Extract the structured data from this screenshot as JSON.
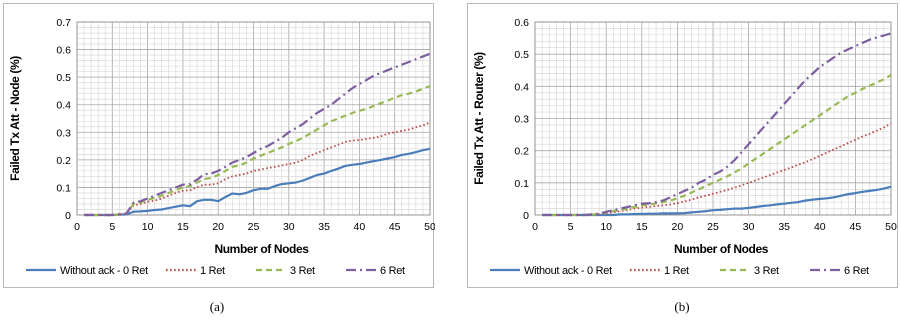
{
  "chart_data": [
    {
      "type": "line",
      "panel_caption": "(a)",
      "xlabel": "Number of Nodes",
      "ylabel": "Failed Tx Att - Node (%)",
      "xlim": [
        0,
        50
      ],
      "ylim": [
        0,
        0.7
      ],
      "xticks": [
        "0",
        "5",
        "10",
        "15",
        "20",
        "25",
        "30",
        "35",
        "40",
        "45",
        "50"
      ],
      "yticks": [
        "0",
        "0.1",
        "0.2",
        "0.3",
        "0.4",
        "0.5",
        "0.6",
        "0.7"
      ],
      "grid": true,
      "legend_position": "bottom",
      "series": [
        {
          "name": "Without ack - 0 Ret",
          "color": "#4a7ebb",
          "style": "solid",
          "x": [
            1,
            3,
            5,
            7,
            8,
            9,
            10,
            11,
            12,
            13,
            14,
            15,
            16,
            17,
            18,
            19,
            20,
            21,
            22,
            23,
            24,
            25,
            26,
            27,
            28,
            29,
            30,
            31,
            32,
            33,
            34,
            35,
            36,
            37,
            38,
            39,
            40,
            41,
            42,
            43,
            44,
            45,
            46,
            47,
            48,
            49,
            50
          ],
          "y": [
            0,
            0,
            0,
            0.002,
            0.012,
            0.013,
            0.015,
            0.018,
            0.02,
            0.025,
            0.03,
            0.035,
            0.032,
            0.05,
            0.055,
            0.055,
            0.05,
            0.065,
            0.078,
            0.075,
            0.08,
            0.09,
            0.095,
            0.095,
            0.105,
            0.112,
            0.115,
            0.118,
            0.125,
            0.135,
            0.145,
            0.15,
            0.16,
            0.168,
            0.178,
            0.182,
            0.185,
            0.19,
            0.195,
            0.2,
            0.205,
            0.21,
            0.218,
            0.222,
            0.228,
            0.235,
            0.24
          ]
        },
        {
          "name": "1 Ret",
          "color": "#be4b48",
          "style": "dot",
          "x": [
            1,
            3,
            5,
            7,
            8,
            9,
            10,
            11,
            12,
            13,
            14,
            15,
            16,
            17,
            18,
            19,
            20,
            21,
            22,
            23,
            24,
            25,
            26,
            27,
            28,
            29,
            30,
            31,
            32,
            33,
            34,
            35,
            36,
            37,
            38,
            39,
            40,
            41,
            42,
            43,
            44,
            45,
            46,
            47,
            48,
            49,
            50
          ],
          "y": [
            0,
            0,
            0,
            0.005,
            0.035,
            0.04,
            0.048,
            0.052,
            0.06,
            0.07,
            0.08,
            0.088,
            0.09,
            0.1,
            0.11,
            0.11,
            0.115,
            0.13,
            0.14,
            0.145,
            0.15,
            0.16,
            0.165,
            0.17,
            0.175,
            0.18,
            0.185,
            0.19,
            0.2,
            0.215,
            0.225,
            0.235,
            0.245,
            0.255,
            0.265,
            0.27,
            0.272,
            0.276,
            0.28,
            0.285,
            0.295,
            0.3,
            0.305,
            0.31,
            0.318,
            0.325,
            0.335
          ]
        },
        {
          "name": "3 Ret",
          "color": "#98b954",
          "style": "dash",
          "x": [
            1,
            3,
            5,
            7,
            8,
            9,
            10,
            11,
            12,
            13,
            14,
            15,
            16,
            17,
            18,
            19,
            20,
            21,
            22,
            23,
            24,
            25,
            26,
            27,
            28,
            29,
            30,
            31,
            32,
            33,
            34,
            35,
            36,
            37,
            38,
            39,
            40,
            41,
            42,
            43,
            44,
            45,
            46,
            47,
            48,
            49,
            50
          ],
          "y": [
            0,
            0,
            0,
            0.005,
            0.04,
            0.045,
            0.055,
            0.062,
            0.07,
            0.08,
            0.09,
            0.1,
            0.105,
            0.118,
            0.13,
            0.135,
            0.145,
            0.16,
            0.175,
            0.18,
            0.19,
            0.205,
            0.215,
            0.225,
            0.235,
            0.245,
            0.258,
            0.268,
            0.28,
            0.295,
            0.31,
            0.325,
            0.34,
            0.35,
            0.36,
            0.37,
            0.378,
            0.385,
            0.395,
            0.405,
            0.415,
            0.425,
            0.435,
            0.44,
            0.448,
            0.458,
            0.468
          ]
        },
        {
          "name": "6 Ret",
          "color": "#7d5fa0",
          "style": "longdash",
          "x": [
            1,
            3,
            5,
            7,
            8,
            9,
            10,
            11,
            12,
            13,
            14,
            15,
            16,
            17,
            18,
            19,
            20,
            21,
            22,
            23,
            24,
            25,
            26,
            27,
            28,
            29,
            30,
            31,
            32,
            33,
            34,
            35,
            36,
            37,
            38,
            39,
            40,
            41,
            42,
            43,
            44,
            45,
            46,
            47,
            48,
            49,
            50
          ],
          "y": [
            0,
            0,
            0,
            0.005,
            0.045,
            0.05,
            0.06,
            0.07,
            0.08,
            0.09,
            0.1,
            0.11,
            0.112,
            0.128,
            0.148,
            0.15,
            0.16,
            0.175,
            0.19,
            0.2,
            0.21,
            0.225,
            0.24,
            0.25,
            0.265,
            0.28,
            0.3,
            0.315,
            0.33,
            0.35,
            0.37,
            0.385,
            0.4,
            0.42,
            0.44,
            0.46,
            0.475,
            0.49,
            0.505,
            0.515,
            0.525,
            0.535,
            0.545,
            0.555,
            0.565,
            0.575,
            0.585
          ]
        }
      ]
    },
    {
      "type": "line",
      "panel_caption": "(b)",
      "xlabel": "Number of Nodes",
      "ylabel": "Failed Tx Att - Router (%)",
      "xlim": [
        0,
        50
      ],
      "ylim": [
        0,
        0.6
      ],
      "xticks": [
        "0",
        "5",
        "10",
        "15",
        "20",
        "25",
        "30",
        "35",
        "40",
        "45",
        "50"
      ],
      "yticks": [
        "0",
        "0.1",
        "0.2",
        "0.3",
        "0.4",
        "0.5",
        "0.6"
      ],
      "grid": true,
      "legend_position": "bottom",
      "series": [
        {
          "name": "Without ack - 0 Ret",
          "color": "#4a7ebb",
          "style": "solid",
          "x": [
            1,
            3,
            5,
            7,
            9,
            10,
            11,
            12,
            13,
            14,
            15,
            16,
            17,
            18,
            19,
            20,
            21,
            22,
            23,
            24,
            25,
            26,
            27,
            28,
            29,
            30,
            31,
            32,
            33,
            34,
            35,
            36,
            37,
            38,
            39,
            40,
            41,
            42,
            43,
            44,
            45,
            46,
            47,
            48,
            49,
            50
          ],
          "y": [
            0,
            0,
            0,
            0,
            0,
            0,
            0,
            0.002,
            0.002,
            0.003,
            0.003,
            0.004,
            0.004,
            0.005,
            0.005,
            0.005,
            0.006,
            0.008,
            0.01,
            0.012,
            0.015,
            0.016,
            0.018,
            0.02,
            0.02,
            0.022,
            0.025,
            0.028,
            0.03,
            0.033,
            0.035,
            0.038,
            0.04,
            0.045,
            0.048,
            0.05,
            0.052,
            0.055,
            0.06,
            0.065,
            0.068,
            0.072,
            0.075,
            0.078,
            0.082,
            0.088
          ]
        },
        {
          "name": "1 Ret",
          "color": "#be4b48",
          "style": "dot",
          "x": [
            1,
            3,
            5,
            7,
            9,
            10,
            11,
            12,
            13,
            14,
            15,
            16,
            17,
            18,
            19,
            20,
            21,
            22,
            23,
            24,
            25,
            26,
            27,
            28,
            29,
            30,
            31,
            32,
            33,
            34,
            35,
            36,
            37,
            38,
            39,
            40,
            41,
            42,
            43,
            44,
            45,
            46,
            47,
            48,
            49,
            50
          ],
          "y": [
            0,
            0,
            0,
            0,
            0.002,
            0.005,
            0.008,
            0.012,
            0.016,
            0.02,
            0.023,
            0.025,
            0.028,
            0.03,
            0.033,
            0.037,
            0.042,
            0.048,
            0.055,
            0.06,
            0.066,
            0.072,
            0.078,
            0.085,
            0.092,
            0.1,
            0.108,
            0.116,
            0.124,
            0.132,
            0.14,
            0.148,
            0.156,
            0.164,
            0.174,
            0.184,
            0.194,
            0.204,
            0.214,
            0.224,
            0.234,
            0.244,
            0.252,
            0.262,
            0.272,
            0.285
          ]
        },
        {
          "name": "3 Ret",
          "color": "#98b954",
          "style": "dash",
          "x": [
            1,
            3,
            5,
            7,
            9,
            10,
            11,
            12,
            13,
            14,
            15,
            16,
            17,
            18,
            19,
            20,
            21,
            22,
            23,
            24,
            25,
            26,
            27,
            28,
            29,
            30,
            31,
            32,
            33,
            34,
            35,
            36,
            37,
            38,
            39,
            40,
            41,
            42,
            43,
            44,
            45,
            46,
            47,
            48,
            49,
            50
          ],
          "y": [
            0,
            0,
            0,
            0,
            0.003,
            0.008,
            0.012,
            0.016,
            0.02,
            0.025,
            0.03,
            0.032,
            0.036,
            0.04,
            0.045,
            0.052,
            0.06,
            0.07,
            0.08,
            0.09,
            0.1,
            0.11,
            0.12,
            0.132,
            0.145,
            0.16,
            0.175,
            0.19,
            0.205,
            0.22,
            0.235,
            0.25,
            0.265,
            0.28,
            0.295,
            0.31,
            0.325,
            0.34,
            0.355,
            0.37,
            0.38,
            0.392,
            0.402,
            0.412,
            0.422,
            0.435
          ]
        },
        {
          "name": "6 Ret",
          "color": "#7d5fa0",
          "style": "longdash",
          "x": [
            1,
            3,
            5,
            7,
            9,
            10,
            11,
            12,
            13,
            14,
            15,
            16,
            17,
            18,
            19,
            20,
            21,
            22,
            23,
            24,
            25,
            26,
            27,
            28,
            29,
            30,
            31,
            32,
            33,
            34,
            35,
            36,
            37,
            38,
            39,
            40,
            41,
            42,
            43,
            44,
            45,
            46,
            47,
            48,
            49,
            50
          ],
          "y": [
            0,
            0,
            0,
            0,
            0.004,
            0.01,
            0.015,
            0.02,
            0.025,
            0.03,
            0.035,
            0.036,
            0.04,
            0.045,
            0.055,
            0.065,
            0.075,
            0.085,
            0.1,
            0.11,
            0.125,
            0.135,
            0.15,
            0.17,
            0.195,
            0.22,
            0.245,
            0.27,
            0.295,
            0.32,
            0.345,
            0.37,
            0.395,
            0.42,
            0.44,
            0.46,
            0.475,
            0.49,
            0.505,
            0.515,
            0.525,
            0.535,
            0.545,
            0.552,
            0.558,
            0.565
          ]
        }
      ]
    }
  ]
}
